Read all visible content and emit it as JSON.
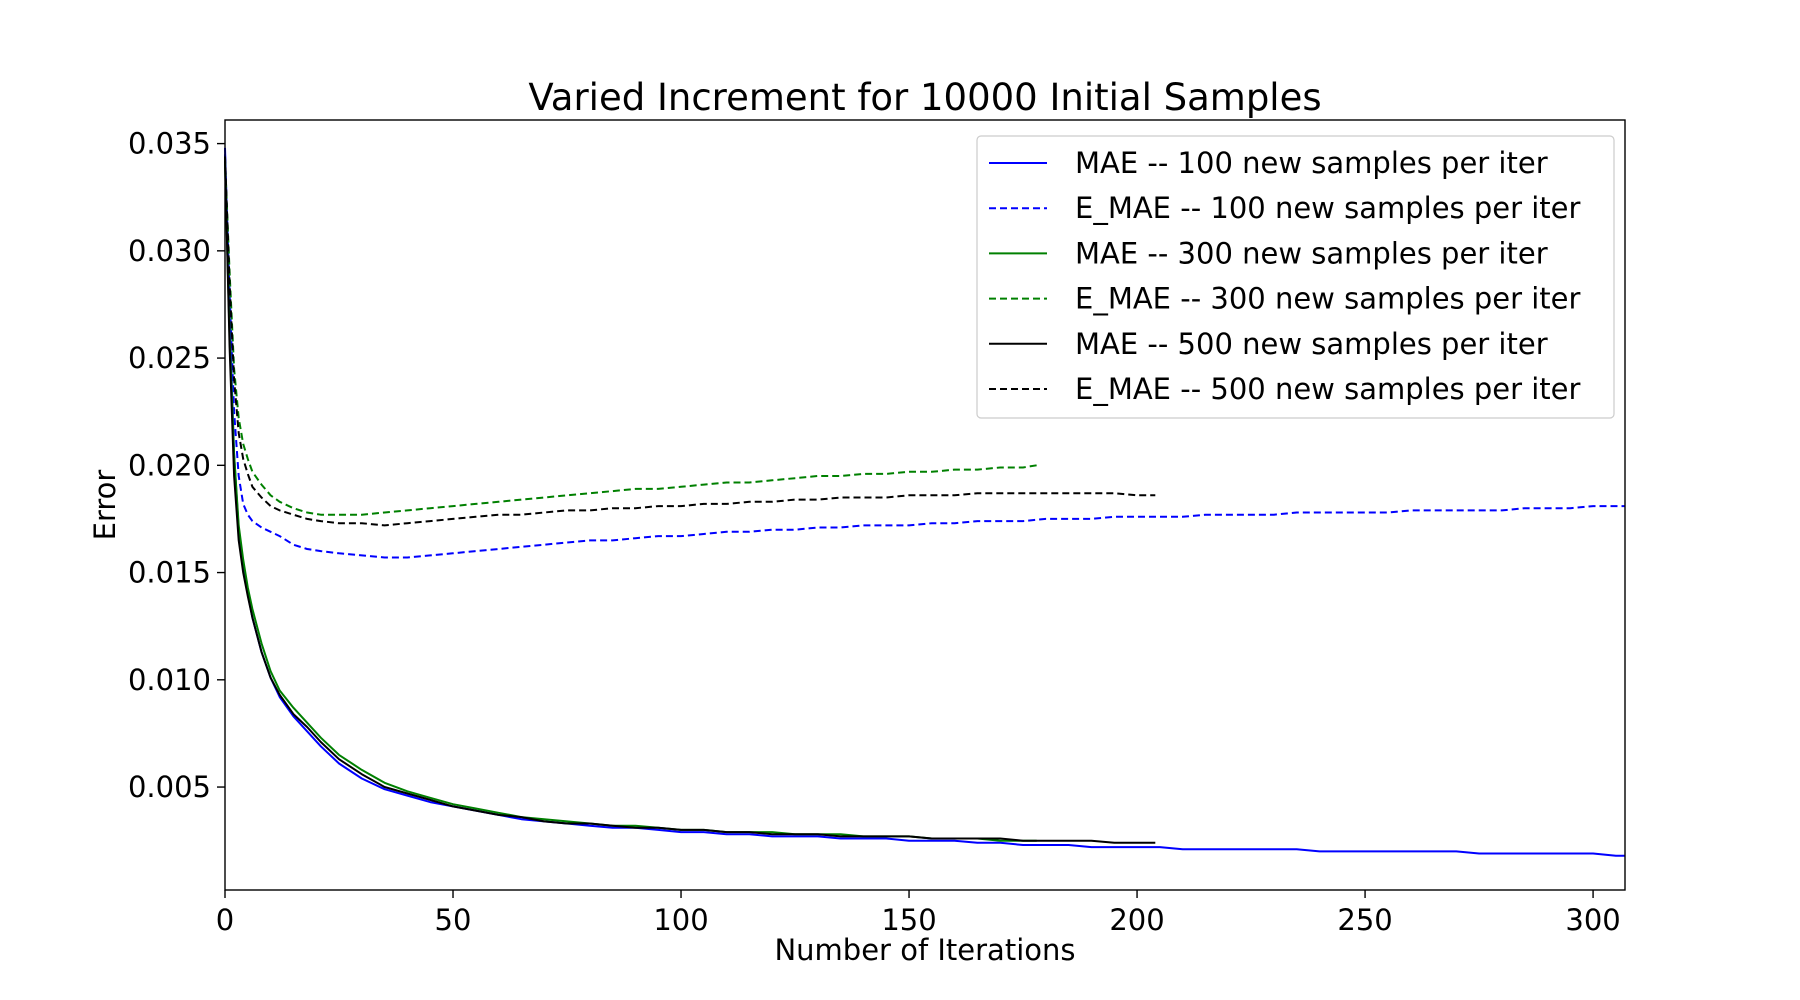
{
  "chart_data": {
    "type": "line",
    "title": "Varied Increment for 10000 Initial Samples",
    "xlabel": "Number of Iterations",
    "ylabel": "Error",
    "xlim": [
      0,
      307
    ],
    "ylim": [
      0.0002,
      0.0361
    ],
    "xticks": [
      0,
      50,
      100,
      150,
      200,
      250,
      300
    ],
    "yticks": [
      0.005,
      0.01,
      0.015,
      0.02,
      0.025,
      0.03,
      0.035
    ],
    "xtick_labels": [
      "0",
      "50",
      "100",
      "150",
      "200",
      "250",
      "300"
    ],
    "ytick_labels": [
      "0.005",
      "0.010",
      "0.015",
      "0.020",
      "0.025",
      "0.030",
      "0.035"
    ],
    "grid": false,
    "legend_position": "top-right",
    "series": [
      {
        "name": "MAE -- 100 new samples per iter",
        "color": "#0000ff",
        "dash": "solid",
        "x": [
          0,
          1,
          2,
          3,
          4,
          5,
          6,
          8,
          10,
          12,
          15,
          18,
          21,
          25,
          30,
          35,
          40,
          45,
          50,
          55,
          60,
          65,
          70,
          75,
          80,
          85,
          90,
          95,
          100,
          105,
          110,
          115,
          120,
          125,
          130,
          135,
          140,
          145,
          150,
          155,
          160,
          165,
          170,
          175,
          180,
          185,
          190,
          195,
          200,
          205,
          210,
          215,
          220,
          225,
          230,
          235,
          240,
          245,
          250,
          255,
          260,
          265,
          270,
          275,
          280,
          285,
          290,
          295,
          300,
          305,
          307
        ],
        "y": [
          0.0348,
          0.027,
          0.0205,
          0.017,
          0.0152,
          0.014,
          0.0129,
          0.0113,
          0.0101,
          0.0092,
          0.0083,
          0.0076,
          0.0069,
          0.0061,
          0.0054,
          0.0049,
          0.0046,
          0.0043,
          0.0041,
          0.0039,
          0.0037,
          0.0035,
          0.0034,
          0.0033,
          0.0032,
          0.0031,
          0.0031,
          0.003,
          0.0029,
          0.0029,
          0.0028,
          0.0028,
          0.0027,
          0.0027,
          0.0027,
          0.0026,
          0.0026,
          0.0026,
          0.0025,
          0.0025,
          0.0025,
          0.0024,
          0.0024,
          0.0023,
          0.0023,
          0.0023,
          0.0022,
          0.0022,
          0.0022,
          0.0022,
          0.0021,
          0.0021,
          0.0021,
          0.0021,
          0.0021,
          0.0021,
          0.002,
          0.002,
          0.002,
          0.002,
          0.002,
          0.002,
          0.002,
          0.0019,
          0.0019,
          0.0019,
          0.0019,
          0.0019,
          0.0019,
          0.0018,
          0.0018
        ]
      },
      {
        "name": "E_MAE -- 100 new samples per iter",
        "color": "#0000ff",
        "dash": "dashed",
        "x": [
          0,
          1,
          2,
          3,
          4,
          5,
          6,
          8,
          10,
          12,
          15,
          18,
          21,
          25,
          30,
          35,
          40,
          45,
          50,
          55,
          60,
          65,
          70,
          75,
          80,
          85,
          90,
          95,
          100,
          105,
          110,
          115,
          120,
          125,
          130,
          135,
          140,
          145,
          150,
          155,
          160,
          165,
          170,
          175,
          180,
          185,
          190,
          195,
          200,
          205,
          210,
          215,
          220,
          225,
          230,
          235,
          240,
          245,
          250,
          255,
          260,
          265,
          270,
          275,
          280,
          285,
          290,
          295,
          300,
          305,
          307
        ],
        "y": [
          0.0345,
          0.028,
          0.0225,
          0.0195,
          0.0182,
          0.0177,
          0.0174,
          0.0171,
          0.0169,
          0.0167,
          0.0163,
          0.0161,
          0.016,
          0.0159,
          0.0158,
          0.0157,
          0.0157,
          0.0158,
          0.0159,
          0.016,
          0.0161,
          0.0162,
          0.0163,
          0.0164,
          0.0165,
          0.0165,
          0.0166,
          0.0167,
          0.0167,
          0.0168,
          0.0169,
          0.0169,
          0.017,
          0.017,
          0.0171,
          0.0171,
          0.0172,
          0.0172,
          0.0172,
          0.0173,
          0.0173,
          0.0174,
          0.0174,
          0.0174,
          0.0175,
          0.0175,
          0.0175,
          0.0176,
          0.0176,
          0.0176,
          0.0176,
          0.0177,
          0.0177,
          0.0177,
          0.0177,
          0.0178,
          0.0178,
          0.0178,
          0.0178,
          0.0178,
          0.0179,
          0.0179,
          0.0179,
          0.0179,
          0.0179,
          0.018,
          0.018,
          0.018,
          0.0181,
          0.0181,
          0.0181
        ]
      },
      {
        "name": "MAE -- 300 new samples per iter",
        "color": "#008000",
        "dash": "solid",
        "x": [
          0,
          1,
          2,
          3,
          4,
          5,
          6,
          8,
          10,
          12,
          15,
          18,
          21,
          25,
          30,
          35,
          40,
          45,
          50,
          55,
          60,
          65,
          70,
          75,
          80,
          85,
          90,
          95,
          100,
          105,
          110,
          115,
          120,
          125,
          130,
          135,
          140,
          145,
          150,
          155,
          160,
          165,
          170,
          175,
          178
        ],
        "y": [
          0.0341,
          0.026,
          0.0205,
          0.0172,
          0.0156,
          0.0143,
          0.0133,
          0.0117,
          0.0104,
          0.0095,
          0.0087,
          0.008,
          0.0073,
          0.0065,
          0.0058,
          0.0052,
          0.0048,
          0.0045,
          0.0042,
          0.004,
          0.0038,
          0.0036,
          0.0035,
          0.0034,
          0.0033,
          0.0032,
          0.0032,
          0.0031,
          0.003,
          0.003,
          0.0029,
          0.0029,
          0.0029,
          0.0028,
          0.0028,
          0.0028,
          0.0027,
          0.0027,
          0.0027,
          0.0026,
          0.0026,
          0.0026,
          0.0025,
          0.0025,
          0.0025
        ]
      },
      {
        "name": "E_MAE -- 300 new samples per iter",
        "color": "#008000",
        "dash": "dashed",
        "x": [
          0,
          1,
          2,
          3,
          4,
          5,
          6,
          8,
          10,
          12,
          15,
          18,
          21,
          25,
          30,
          35,
          40,
          45,
          50,
          55,
          60,
          65,
          70,
          75,
          80,
          85,
          90,
          95,
          100,
          105,
          110,
          115,
          120,
          125,
          130,
          135,
          140,
          145,
          150,
          155,
          160,
          165,
          170,
          175,
          178
        ],
        "y": [
          0.0343,
          0.029,
          0.0245,
          0.0222,
          0.021,
          0.0203,
          0.0197,
          0.0191,
          0.0186,
          0.0183,
          0.018,
          0.0178,
          0.0177,
          0.0177,
          0.0177,
          0.0178,
          0.0179,
          0.018,
          0.0181,
          0.0182,
          0.0183,
          0.0184,
          0.0185,
          0.0186,
          0.0187,
          0.0188,
          0.0189,
          0.0189,
          0.019,
          0.0191,
          0.0192,
          0.0192,
          0.0193,
          0.0194,
          0.0195,
          0.0195,
          0.0196,
          0.0196,
          0.0197,
          0.0197,
          0.0198,
          0.0198,
          0.0199,
          0.0199,
          0.02
        ]
      },
      {
        "name": "MAE -- 500 new samples per iter",
        "color": "#000000",
        "dash": "solid",
        "x": [
          0,
          1,
          2,
          3,
          4,
          5,
          6,
          8,
          10,
          12,
          15,
          18,
          21,
          25,
          30,
          35,
          40,
          45,
          50,
          55,
          60,
          65,
          70,
          75,
          80,
          85,
          90,
          95,
          100,
          105,
          110,
          115,
          120,
          125,
          130,
          135,
          140,
          145,
          150,
          155,
          160,
          165,
          170,
          175,
          180,
          185,
          190,
          195,
          200,
          204
        ],
        "y": [
          0.0342,
          0.0255,
          0.0195,
          0.0165,
          0.015,
          0.0139,
          0.0129,
          0.0113,
          0.0101,
          0.0093,
          0.0084,
          0.0078,
          0.0071,
          0.0063,
          0.0056,
          0.005,
          0.0047,
          0.0044,
          0.0041,
          0.0039,
          0.0037,
          0.0036,
          0.0034,
          0.0033,
          0.0033,
          0.0032,
          0.0031,
          0.0031,
          0.003,
          0.003,
          0.0029,
          0.0029,
          0.0028,
          0.0028,
          0.0028,
          0.0027,
          0.0027,
          0.0027,
          0.0027,
          0.0026,
          0.0026,
          0.0026,
          0.0026,
          0.0025,
          0.0025,
          0.0025,
          0.0025,
          0.0024,
          0.0024,
          0.0024
        ]
      },
      {
        "name": "E_MAE -- 500 new samples per iter",
        "color": "#000000",
        "dash": "dashed",
        "x": [
          0,
          1,
          2,
          3,
          4,
          5,
          6,
          8,
          10,
          12,
          15,
          18,
          21,
          25,
          30,
          35,
          40,
          45,
          50,
          55,
          60,
          65,
          70,
          75,
          80,
          85,
          90,
          95,
          100,
          105,
          110,
          115,
          120,
          125,
          130,
          135,
          140,
          145,
          150,
          155,
          160,
          165,
          170,
          175,
          180,
          185,
          190,
          195,
          200,
          204
        ],
        "y": [
          0.0344,
          0.0285,
          0.024,
          0.0215,
          0.0203,
          0.0196,
          0.019,
          0.0185,
          0.0181,
          0.0179,
          0.0177,
          0.0175,
          0.0174,
          0.0173,
          0.0173,
          0.0172,
          0.0173,
          0.0174,
          0.0175,
          0.0176,
          0.0177,
          0.0177,
          0.0178,
          0.0179,
          0.0179,
          0.018,
          0.018,
          0.0181,
          0.0181,
          0.0182,
          0.0182,
          0.0183,
          0.0183,
          0.0184,
          0.0184,
          0.0185,
          0.0185,
          0.0185,
          0.0186,
          0.0186,
          0.0186,
          0.0187,
          0.0187,
          0.0187,
          0.0187,
          0.0187,
          0.0187,
          0.0187,
          0.0186,
          0.0186
        ]
      }
    ]
  }
}
